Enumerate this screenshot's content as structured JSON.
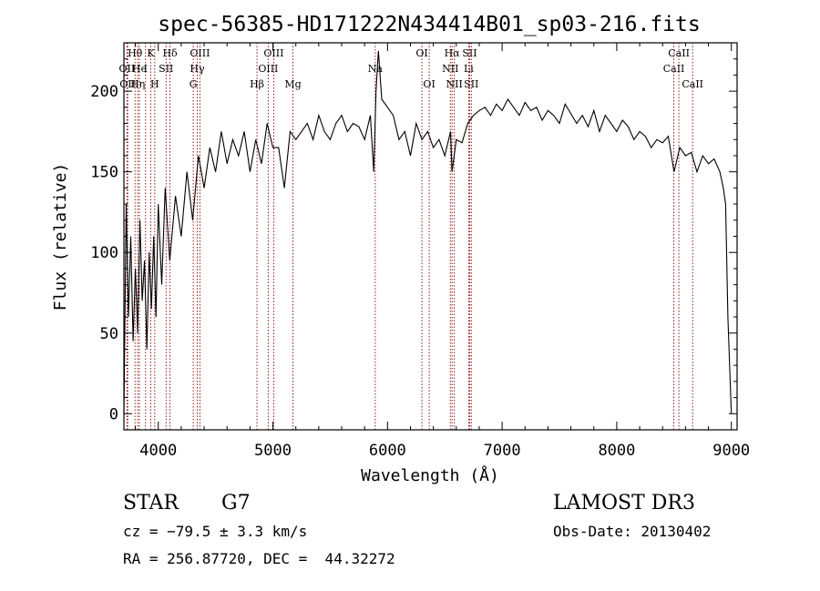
{
  "chart_data": {
    "type": "line",
    "title": "spec-56385-HD171222N434414B01_sp03-216.fits",
    "xlabel": "Wavelength (Å)",
    "ylabel": "Flux (relative)",
    "xlim": [
      3700,
      9050
    ],
    "ylim": [
      -10,
      230
    ],
    "x_ticks": [
      4000,
      5000,
      6000,
      7000,
      8000,
      9000
    ],
    "y_ticks": [
      0,
      50,
      100,
      150,
      200
    ],
    "grid": false,
    "line_color": "#000000",
    "marker_color": "#8b0000",
    "series": [
      {
        "x": [
          3700,
          3720,
          3740,
          3760,
          3780,
          3800,
          3820,
          3840,
          3860,
          3880,
          3900,
          3920,
          3940,
          3960,
          3980,
          4000,
          4030,
          4060,
          4100,
          4150,
          4200,
          4250,
          4300,
          4350,
          4400,
          4450,
          4500,
          4550,
          4600,
          4650,
          4700,
          4750,
          4800,
          4850,
          4900,
          4950,
          5000,
          5050,
          5100,
          5150,
          5200,
          5250,
          5300,
          5350,
          5400,
          5450,
          5500,
          5550,
          5600,
          5650,
          5700,
          5750,
          5800,
          5850,
          5880,
          5900,
          5920,
          5950,
          6000,
          6050,
          6100,
          6150,
          6200,
          6250,
          6300,
          6350,
          6400,
          6450,
          6500,
          6550,
          6563,
          6600,
          6650,
          6700,
          6750,
          6800,
          6850,
          6900,
          6950,
          7000,
          7050,
          7100,
          7150,
          7200,
          7250,
          7300,
          7350,
          7400,
          7450,
          7500,
          7550,
          7600,
          7650,
          7700,
          7750,
          7800,
          7850,
          7900,
          7950,
          8000,
          8050,
          8100,
          8150,
          8200,
          8250,
          8300,
          8350,
          8400,
          8450,
          8500,
          8550,
          8600,
          8650,
          8700,
          8750,
          8800,
          8850,
          8900,
          8930,
          8950,
          8970,
          9000
        ],
        "y": [
          0,
          130,
          60,
          110,
          45,
          90,
          50,
          120,
          70,
          95,
          40,
          100,
          65,
          110,
          60,
          130,
          80,
          140,
          95,
          135,
          110,
          150,
          120,
          160,
          140,
          165,
          150,
          175,
          155,
          170,
          160,
          175,
          150,
          170,
          155,
          180,
          165,
          165,
          140,
          175,
          170,
          175,
          180,
          170,
          185,
          175,
          170,
          180,
          185,
          175,
          180,
          178,
          170,
          185,
          150,
          200,
          225,
          195,
          190,
          185,
          170,
          175,
          160,
          180,
          170,
          175,
          165,
          170,
          160,
          175,
          150,
          170,
          168,
          180,
          185,
          188,
          190,
          185,
          192,
          188,
          195,
          190,
          185,
          193,
          188,
          190,
          182,
          188,
          185,
          180,
          192,
          186,
          180,
          185,
          178,
          188,
          175,
          185,
          180,
          175,
          182,
          178,
          170,
          175,
          172,
          165,
          170,
          168,
          172,
          150,
          165,
          160,
          162,
          150,
          160,
          155,
          158,
          150,
          140,
          130,
          60,
          0
        ]
      }
    ],
    "line_markers": [
      {
        "label": "Hθ",
        "x": 3797,
        "row": 1
      },
      {
        "label": "OII",
        "x": 3727,
        "row": 2
      },
      {
        "label": "He",
        "x": 3835,
        "row": 2
      },
      {
        "label": "OII",
        "x": 3733,
        "row": 3
      },
      {
        "label": "Hη",
        "x": 3820,
        "row": 3
      },
      {
        "label": "K",
        "x": 3934,
        "row": 1
      },
      {
        "label": "H",
        "x": 3969,
        "row": 3
      },
      {
        "label": "I",
        "x": 3889,
        "row": 2
      },
      {
        "label": "SII",
        "x": 4068,
        "row": 2
      },
      {
        "label": "Hδ",
        "x": 4102,
        "row": 1
      },
      {
        "label": "OIII",
        "x": 4363,
        "row": 1
      },
      {
        "label": "Hγ",
        "x": 4340,
        "row": 2
      },
      {
        "label": "G",
        "x": 4305,
        "row": 3
      },
      {
        "label": "OIII",
        "x": 5007,
        "row": 1
      },
      {
        "label": "OIII",
        "x": 4959,
        "row": 2
      },
      {
        "label": "Hβ",
        "x": 4861,
        "row": 3
      },
      {
        "label": "Mg",
        "x": 5175,
        "row": 3
      },
      {
        "label": "Na",
        "x": 5893,
        "row": 2
      },
      {
        "label": "OI",
        "x": 6300,
        "row": 1
      },
      {
        "label": "OI",
        "x": 6364,
        "row": 3
      },
      {
        "label": "Hα",
        "x": 6563,
        "row": 1
      },
      {
        "label": "SII",
        "x": 6717,
        "row": 1
      },
      {
        "label": "NII",
        "x": 6548,
        "row": 2
      },
      {
        "label": "Li",
        "x": 6708,
        "row": 2
      },
      {
        "label": "NII",
        "x": 6583,
        "row": 3
      },
      {
        "label": "SII",
        "x": 6731,
        "row": 3
      },
      {
        "label": "CaII",
        "x": 8542,
        "row": 1
      },
      {
        "label": "CaII",
        "x": 8498,
        "row": 2
      },
      {
        "label": "CaII",
        "x": 8662,
        "row": 3
      }
    ]
  },
  "info": {
    "object_type": "STAR",
    "subclass": "G7",
    "survey": "LAMOST DR3",
    "cz": "cz = −79.5 ± 3.3 km/s",
    "obs_date": "Obs-Date: 20130402",
    "coords": "RA = 256.87720, DEC =  44.32272"
  }
}
